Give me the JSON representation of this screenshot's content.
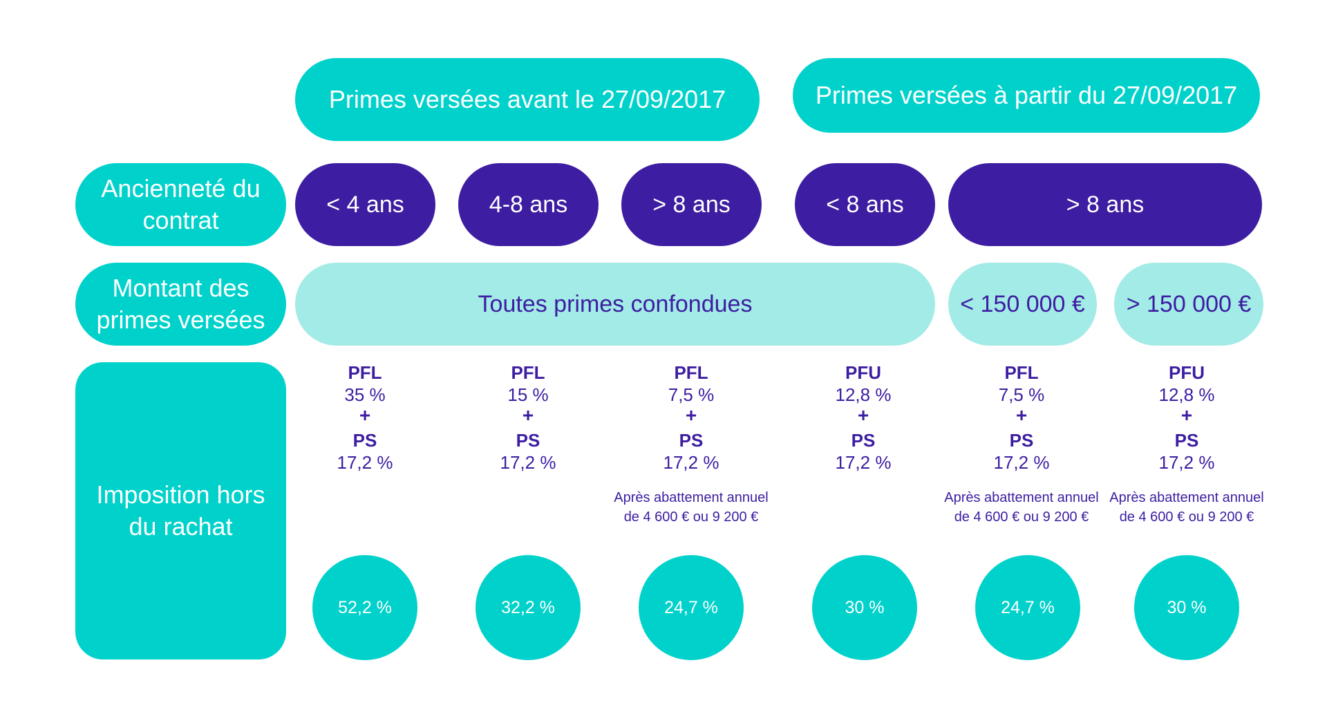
{
  "colors": {
    "teal": "#00d2cb",
    "purple": "#3d1da1",
    "light_teal": "#a2ebe6"
  },
  "headers": {
    "before": "Primes versées avant le 27/09/2017",
    "after": "Primes versées à partir du 27/09/2017"
  },
  "row_labels": {
    "anciennete": "Ancienneté du contrat",
    "montant": "Montant des primes versées",
    "imposition": "Imposition hors du rachat"
  },
  "durations": [
    "< 4 ans",
    "4-8 ans",
    "> 8 ans",
    "< 8 ans",
    "> 8 ans"
  ],
  "amounts": {
    "all": "Toutes primes confondues",
    "below": "< 150 000 €",
    "above": "> 150 000 €"
  },
  "plus_sign": "+",
  "taxes": [
    {
      "label1": "PFL",
      "rate1": "35 %",
      "label2": "PS",
      "rate2": "17,2 %",
      "note": "",
      "total": "52,2 %"
    },
    {
      "label1": "PFL",
      "rate1": "15 %",
      "label2": "PS",
      "rate2": "17,2 %",
      "note": "",
      "total": "32,2 %"
    },
    {
      "label1": "PFL",
      "rate1": "7,5 %",
      "label2": "PS",
      "rate2": "17,2 %",
      "note": "Après abattement annuel de 4 600 € ou 9 200 €",
      "total": "24,7 %"
    },
    {
      "label1": "PFU",
      "rate1": "12,8 %",
      "label2": "PS",
      "rate2": "17,2 %",
      "note": "",
      "total": "30 %"
    },
    {
      "label1": "PFL",
      "rate1": "7,5 %",
      "label2": "PS",
      "rate2": "17,2 %",
      "note": "Après abattement annuel de 4 600 € ou 9 200 €",
      "total": "24,7 %"
    },
    {
      "label1": "PFU",
      "rate1": "12,8 %",
      "label2": "PS",
      "rate2": "17,2 %",
      "note": "Après abattement annuel de 4 600 € ou 9 200 €",
      "total": "30 %"
    }
  ]
}
